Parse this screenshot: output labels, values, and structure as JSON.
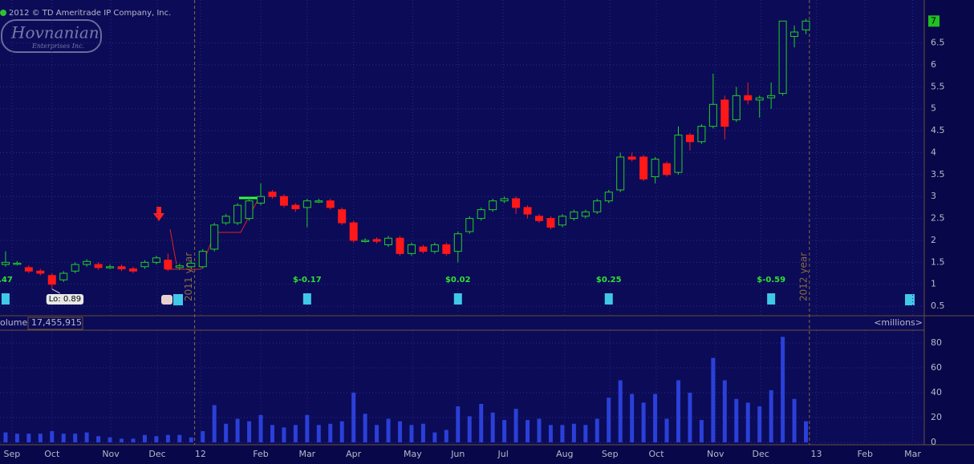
{
  "chart_data": [
    {
      "type": "candlestick",
      "copyright": "2012 © TD Ameritrade IP Company, Inc.",
      "logo": "Hovnanian",
      "logo_sub": "Enterprises Inc.",
      "x": [
        0,
        1,
        2,
        3,
        4,
        5,
        6,
        7,
        8,
        9,
        10,
        11,
        12,
        13,
        14,
        15,
        16,
        17,
        18,
        19,
        20,
        21,
        22,
        23,
        24,
        25,
        26,
        27,
        28,
        29,
        30,
        31,
        32,
        33,
        34,
        35,
        36,
        37,
        38,
        39,
        40,
        41,
        42,
        43,
        44,
        45,
        46,
        47,
        48,
        49,
        50,
        51,
        52,
        53,
        54,
        55,
        56,
        57,
        58,
        59,
        60,
        61,
        62,
        63,
        64,
        65,
        66,
        67,
        68,
        69
      ],
      "open": [
        1.45,
        1.48,
        1.38,
        1.3,
        1.2,
        1.1,
        1.3,
        1.45,
        1.45,
        1.38,
        1.4,
        1.35,
        1.4,
        1.5,
        1.55,
        1.38,
        1.4,
        1.4,
        1.8,
        2.4,
        2.4,
        2.5,
        2.85,
        3.1,
        3.0,
        2.8,
        2.75,
        2.9,
        2.9,
        2.7,
        2.4,
        2.0,
        2.02,
        1.9,
        2.05,
        1.7,
        1.85,
        1.75,
        1.9,
        1.75,
        2.2,
        2.5,
        2.7,
        2.9,
        2.95,
        2.75,
        2.55,
        2.5,
        2.35,
        2.5,
        2.55,
        2.65,
        2.9,
        3.15,
        3.9,
        3.9,
        3.45,
        3.75,
        3.55,
        4.4,
        4.25,
        4.6,
        5.2,
        4.75,
        5.3,
        5.2,
        5.25,
        5.35,
        6.65,
        6.8
      ],
      "close": [
        1.5,
        1.48,
        1.3,
        1.25,
        1.0,
        1.25,
        1.45,
        1.52,
        1.38,
        1.4,
        1.35,
        1.3,
        1.5,
        1.6,
        1.35,
        1.42,
        1.48,
        1.75,
        2.35,
        2.55,
        2.8,
        2.9,
        3.0,
        3.0,
        2.8,
        2.72,
        2.9,
        2.9,
        2.75,
        2.4,
        2.0,
        2.0,
        1.98,
        2.05,
        1.7,
        1.9,
        1.75,
        1.9,
        1.7,
        2.15,
        2.5,
        2.7,
        2.9,
        2.95,
        2.75,
        2.6,
        2.45,
        2.3,
        2.55,
        2.65,
        2.65,
        2.9,
        3.1,
        3.9,
        3.85,
        3.4,
        3.85,
        3.5,
        4.4,
        4.25,
        4.6,
        5.1,
        4.6,
        5.3,
        5.2,
        5.25,
        5.3,
        7.0,
        6.75,
        7.0
      ],
      "high": [
        1.75,
        1.53,
        1.43,
        1.35,
        1.25,
        1.3,
        1.5,
        1.57,
        1.5,
        1.45,
        1.45,
        1.4,
        1.55,
        1.65,
        1.7,
        1.47,
        1.53,
        1.8,
        2.4,
        2.6,
        2.85,
        3.0,
        3.3,
        3.15,
        3.05,
        2.85,
        2.95,
        2.95,
        2.95,
        2.75,
        2.45,
        2.05,
        2.07,
        2.1,
        2.1,
        1.95,
        1.9,
        1.95,
        1.95,
        2.2,
        2.55,
        2.75,
        2.95,
        3.0,
        3.0,
        2.8,
        2.6,
        2.55,
        2.6,
        2.7,
        2.7,
        2.95,
        3.15,
        4.0,
        4.0,
        3.95,
        3.9,
        3.8,
        4.6,
        4.45,
        4.65,
        5.8,
        5.3,
        5.5,
        5.6,
        5.3,
        5.6,
        7.0,
        6.9,
        7.05
      ],
      "low": [
        1.4,
        1.43,
        1.25,
        1.2,
        0.89,
        1.05,
        1.25,
        1.4,
        1.33,
        1.35,
        1.3,
        1.25,
        1.35,
        1.45,
        1.3,
        1.33,
        1.35,
        1.35,
        1.75,
        2.35,
        2.35,
        2.45,
        2.8,
        2.95,
        2.75,
        2.65,
        2.3,
        2.85,
        2.7,
        2.35,
        1.95,
        1.95,
        1.93,
        1.85,
        1.65,
        1.65,
        1.7,
        1.7,
        1.65,
        1.5,
        2.15,
        2.45,
        2.65,
        2.85,
        2.6,
        2.5,
        2.4,
        2.25,
        2.3,
        2.45,
        2.5,
        2.6,
        2.85,
        3.1,
        3.8,
        3.35,
        3.3,
        3.45,
        3.5,
        4.05,
        4.2,
        4.55,
        4.3,
        4.7,
        5.1,
        4.8,
        5.0,
        5.3,
        6.4,
        6.7
      ],
      "up_color": "#22d022",
      "down_color": "#ff1818",
      "xlim": [
        -0.48,
        79.2
      ],
      "ylim": [
        0.3,
        7.48
      ],
      "yticks": [
        0.5,
        1,
        1.5,
        2,
        2.5,
        3,
        3.5,
        4,
        4.5,
        5,
        5.5,
        6,
        6.5
      ],
      "last_price": 7,
      "low_label": "Lo: 0.89",
      "earnings": [
        {
          "x": 0,
          "label": ".47"
        },
        {
          "x": 26,
          "label": "$-0.17"
        },
        {
          "x": 39,
          "label": "$0.02"
        },
        {
          "x": 52,
          "label": "$0.25"
        },
        {
          "x": 66,
          "label": "$-0.59"
        }
      ],
      "year_markers": [
        {
          "x": 16.3,
          "label": "2011 year"
        },
        {
          "x": 69.3,
          "label": "2012 year"
        }
      ]
    },
    {
      "type": "bar",
      "title": "olume",
      "last_volume": "17,455,915",
      "unit": "<millions>",
      "x": [
        0,
        1,
        2,
        3,
        4,
        5,
        6,
        7,
        8,
        9,
        10,
        11,
        12,
        13,
        14,
        15,
        16,
        17,
        18,
        19,
        20,
        21,
        22,
        23,
        24,
        25,
        26,
        27,
        28,
        29,
        30,
        31,
        32,
        33,
        34,
        35,
        36,
        37,
        38,
        39,
        40,
        41,
        42,
        43,
        44,
        45,
        46,
        47,
        48,
        49,
        50,
        51,
        52,
        53,
        54,
        55,
        56,
        57,
        58,
        59,
        60,
        61,
        62,
        63,
        64,
        65,
        66,
        67,
        68,
        69
      ],
      "values": [
        8,
        7,
        7,
        7,
        9,
        7,
        7,
        8,
        5,
        4,
        3,
        3,
        6,
        5,
        6,
        6,
        4,
        9,
        30,
        15,
        19,
        17,
        22,
        14,
        12,
        14,
        22,
        14,
        15,
        17,
        40,
        23,
        14,
        19,
        17,
        14,
        15,
        8,
        10,
        29,
        21,
        31,
        24,
        18,
        27,
        18,
        19,
        14,
        14,
        15,
        14,
        19,
        36,
        50,
        39,
        32,
        39,
        19,
        50,
        40,
        18,
        68,
        50,
        35,
        32,
        29,
        42,
        85,
        35,
        17
      ],
      "color": "#2a40d8",
      "xlim": [
        -0.48,
        79.2
      ],
      "ylim": [
        0,
        90
      ],
      "yticks": [
        0,
        20,
        40,
        60,
        80
      ],
      "xticks": [
        {
          "value": 0.55,
          "label": "Sep"
        },
        {
          "value": 4.0,
          "label": "Oct"
        },
        {
          "value": 9.07,
          "label": "Nov"
        },
        {
          "value": 13.08,
          "label": "Dec"
        },
        {
          "value": 16.8,
          "label": "12"
        },
        {
          "value": 22.0,
          "label": "Feb"
        },
        {
          "value": 26.0,
          "label": "Mar"
        },
        {
          "value": 30.0,
          "label": "Apr"
        },
        {
          "value": 35.1,
          "label": "May"
        },
        {
          "value": 39.0,
          "label": "Jun"
        },
        {
          "value": 42.9,
          "label": "Jul"
        },
        {
          "value": 48.2,
          "label": "Aug"
        },
        {
          "value": 52.1,
          "label": "Sep"
        },
        {
          "value": 56.1,
          "label": "Oct"
        },
        {
          "value": 61.2,
          "label": "Nov"
        },
        {
          "value": 65.1,
          "label": "Dec"
        },
        {
          "value": 69.9,
          "label": "13"
        },
        {
          "value": 74.1,
          "label": "Feb"
        },
        {
          "value": 78.2,
          "label": "Mar"
        }
      ]
    }
  ]
}
